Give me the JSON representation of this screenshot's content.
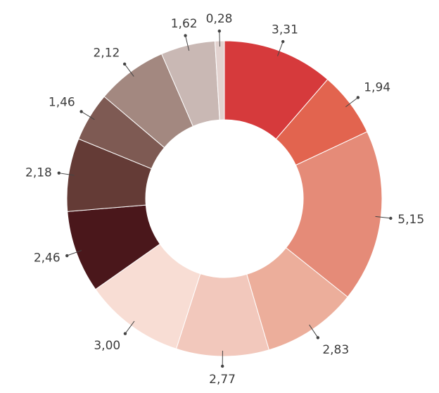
{
  "chart_data": {
    "type": "pie",
    "variant": "donut",
    "series": [
      {
        "label": "3,31",
        "value": 3.31,
        "color": "#d63a3c"
      },
      {
        "label": "1,94",
        "value": 1.94,
        "color": "#e2644f"
      },
      {
        "label": "5,15",
        "value": 5.15,
        "color": "#e58b78"
      },
      {
        "label": "2,83",
        "value": 2.83,
        "color": "#ecae9b"
      },
      {
        "label": "2,77",
        "value": 2.77,
        "color": "#f2c8bc"
      },
      {
        "label": "3,00",
        "value": 3.0,
        "color": "#f8ddd4"
      },
      {
        "label": "2,46",
        "value": 2.46,
        "color": "#4a171b"
      },
      {
        "label": "2,18",
        "value": 2.18,
        "color": "#643b36"
      },
      {
        "label": "1,46",
        "value": 1.46,
        "color": "#7e5a53"
      },
      {
        "label": "2,12",
        "value": 2.12,
        "color": "#a38880"
      },
      {
        "label": "1,62",
        "value": 1.62,
        "color": "#c9b8b4"
      },
      {
        "label": "0,28",
        "value": 0.28,
        "color": "#e3d3d0"
      }
    ]
  }
}
